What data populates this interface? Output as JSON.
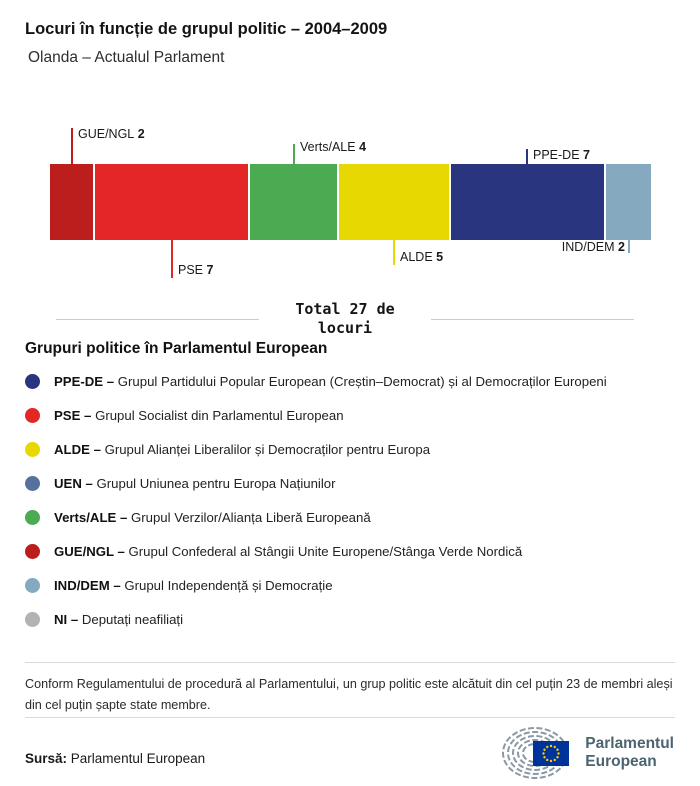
{
  "header": {
    "title": "Locuri în funcție de grupul politic – 2004–2009",
    "subtitle": "Olanda – Actualul Parlament"
  },
  "chart_data": {
    "type": "bar",
    "title": "Locuri în funcție de grupul politic – 2004–2009",
    "region": "Olanda – Actualul Parlament",
    "total_seats": 27,
    "total_label": "Total 27 de locuri",
    "categories": [
      "GUE/NGL",
      "PSE",
      "Verts/ALE",
      "ALDE",
      "PPE-DE",
      "IND/DEM"
    ],
    "values": [
      2,
      7,
      4,
      5,
      7,
      2
    ],
    "segments": [
      {
        "group": "GUE/NGL",
        "seats": 2,
        "color": "#bc1e1e",
        "label_position": "above"
      },
      {
        "group": "PSE",
        "seats": 7,
        "color": "#e32726",
        "label_position": "below"
      },
      {
        "group": "Verts/ALE",
        "seats": 4,
        "color": "#4bab53",
        "label_position": "above"
      },
      {
        "group": "ALDE",
        "seats": 5,
        "color": "#e8d802",
        "label_position": "below"
      },
      {
        "group": "PPE-DE",
        "seats": 7,
        "color": "#2a3580",
        "label_position": "above"
      },
      {
        "group": "IND/DEM",
        "seats": 2,
        "color": "#85aac0",
        "label_position": "below"
      }
    ]
  },
  "legend": {
    "heading": "Grupuri politice în Parlamentul European",
    "items": [
      {
        "label": "PPE-DE –",
        "description": "Grupul Partidului Popular European (Creștin–Democrat) și al Democraților Europeni",
        "color": "#2a3580"
      },
      {
        "label": "PSE –",
        "description": "Grupul Socialist din Parlamentul European",
        "color": "#e32726"
      },
      {
        "label": "ALDE –",
        "description": "Grupul Alianței Liberalilor și Democraților pentru Europa",
        "color": "#e8d802"
      },
      {
        "label": "UEN –",
        "description": "Grupul Uniunea pentru Europa Națiunilor",
        "color": "#57719e"
      },
      {
        "label": "Verts/ALE –",
        "description": "Grupul Verzilor/Alianța Liberă Europeană",
        "color": "#4bab53"
      },
      {
        "label": "GUE/NGL –",
        "description": "Grupul Confederal al Stângii Unite Europene/Stânga Verde Nordică",
        "color": "#bc1e1e"
      },
      {
        "label": "IND/DEM –",
        "description": "Grupul Independență și Democrație",
        "color": "#85aac0"
      },
      {
        "label": "NI –",
        "description": "Deputați neafiliați",
        "color": "#b3b3b3"
      }
    ]
  },
  "footer": {
    "note": "Conform Regulamentului de procedură al Parlamentului, un grup politic este alcătuit din cel puțin 23 de membri aleși din cel puțin șapte state membre.",
    "source_label": "Sursă:",
    "source": "Parlamentul European",
    "logo": {
      "line1": "Parlamentul",
      "line2": "European",
      "flag_blue": "#003399",
      "star_yellow": "#ffcc00",
      "arc_gray": "#8a99a6"
    }
  }
}
